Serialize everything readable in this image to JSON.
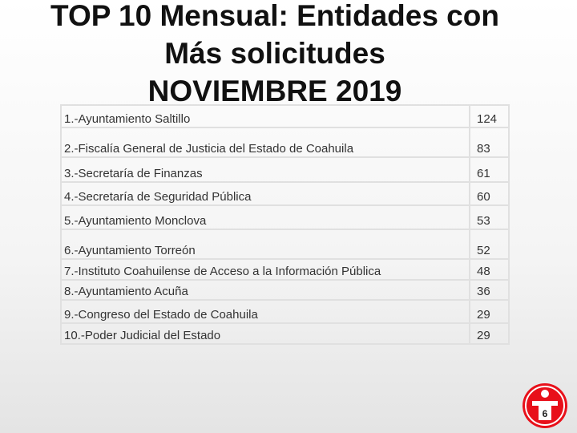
{
  "header": {
    "title_lines": [
      "TOP 10 Mensual: Entidades con",
      "Más solicitudes",
      "NOVIEMBRE 2019"
    ]
  },
  "table": {
    "rows": [
      [
        "1.-Ayuntamiento Saltillo",
        124
      ],
      [
        "2.-Fiscalía General de Justicia del Estado de Coahuila",
        83
      ],
      [
        "3.-Secretaría de Finanzas",
        61
      ],
      [
        "4.-Secretaría de Seguridad Pública",
        60
      ],
      [
        "5.-Ayuntamiento Monclova",
        53
      ],
      [
        "6.-Ayuntamiento Torreón",
        52
      ],
      [
        "7.-Instituto Coahuilense de Acceso a la Información Pública",
        48
      ],
      [
        "8.-Ayuntamiento Acuña",
        36
      ],
      [
        "9.-Congreso del Estado de Coahuila",
        29
      ],
      [
        "10.-Poder Judicial del Estado",
        29
      ]
    ]
  },
  "page_number": 6
}
